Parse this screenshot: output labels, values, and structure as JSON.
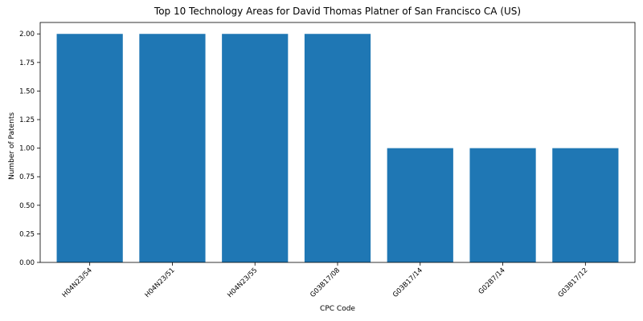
{
  "chart_data": {
    "type": "bar",
    "title": "Top 10 Technology Areas for David Thomas Platner of San Francisco CA (US)",
    "xlabel": "CPC Code",
    "ylabel": "Number of Patents",
    "categories": [
      "H04N23/54",
      "H04N23/51",
      "H04N23/55",
      "G03B17/08",
      "G03B17/14",
      "G02B7/14",
      "G03B17/12"
    ],
    "values": [
      2,
      2,
      2,
      2,
      1,
      1,
      1
    ],
    "ylim": [
      0,
      2.1
    ],
    "yticks": [
      "0.00",
      "0.25",
      "0.50",
      "0.75",
      "1.00",
      "1.25",
      "1.50",
      "1.75",
      "2.00"
    ],
    "grid": false,
    "bar_color": "#1f77b4"
  }
}
